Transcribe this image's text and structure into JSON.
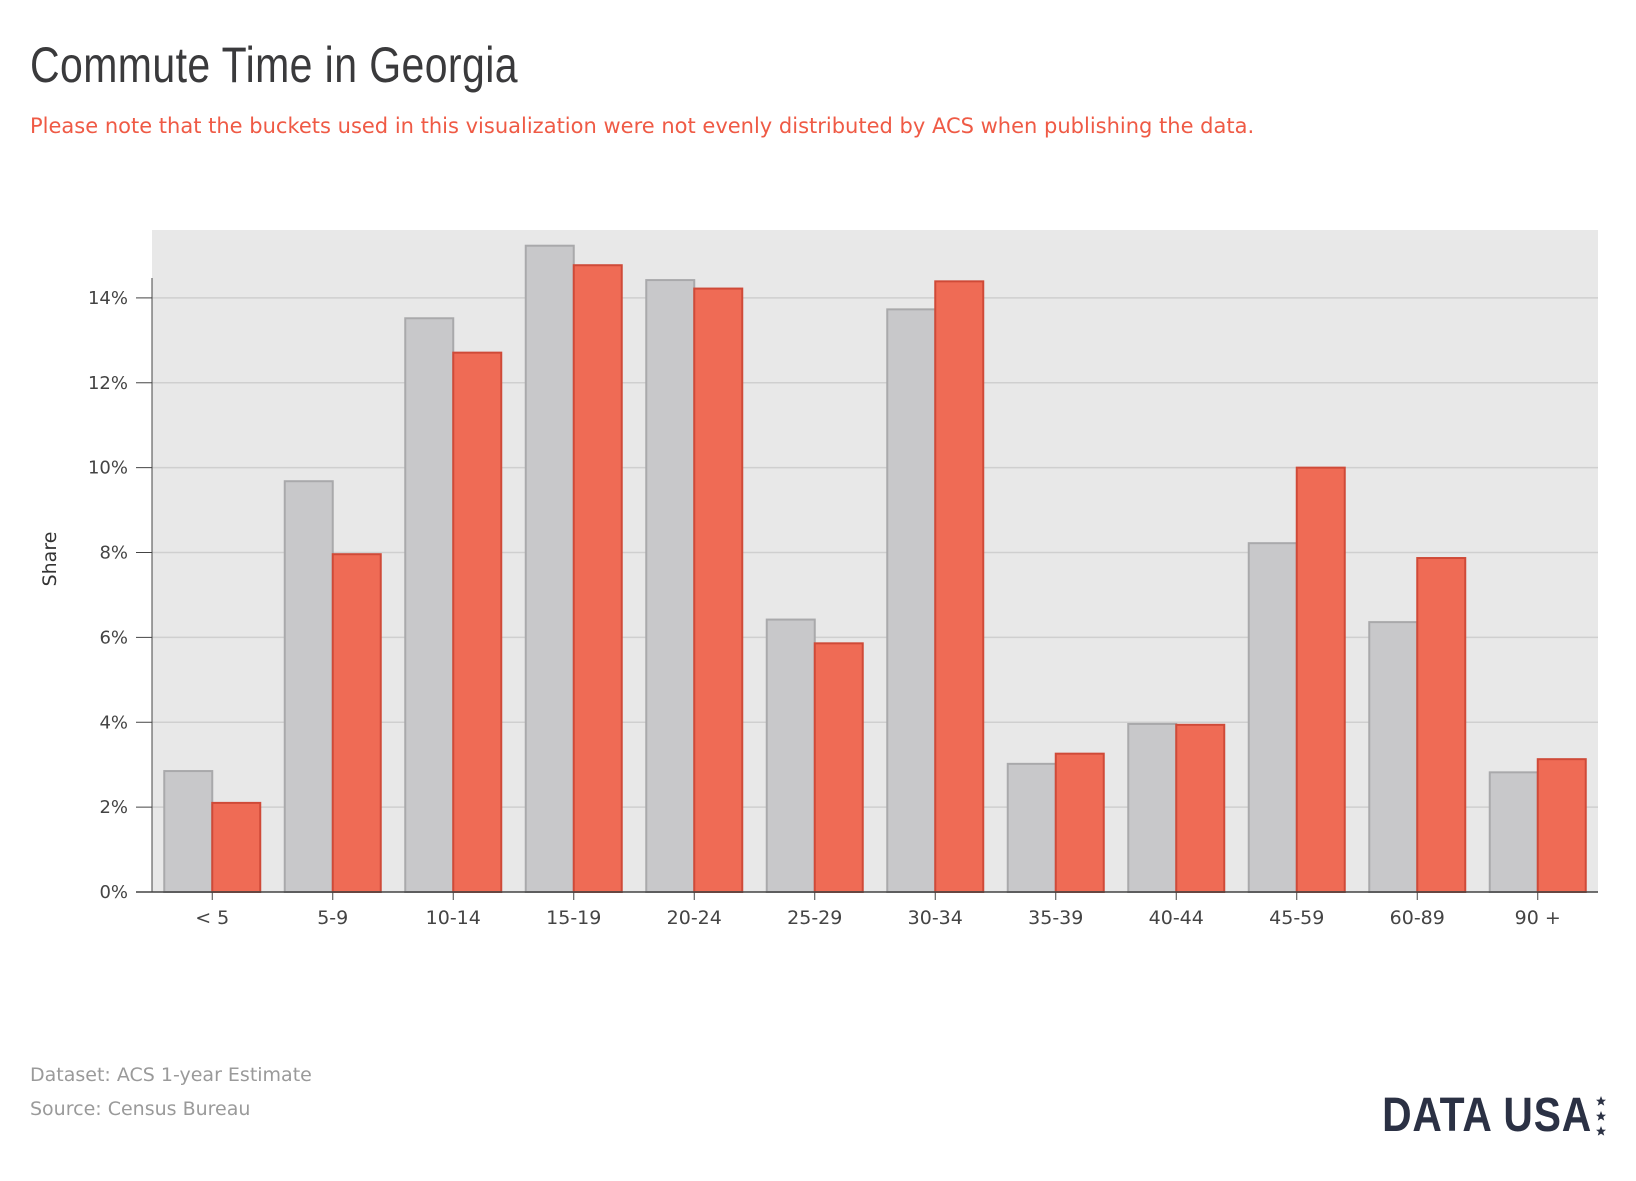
{
  "title": "Commute Time in Georgia",
  "note": "Please note that the buckets used in this visualization were not evenly distributed by ACS when publishing the data.",
  "footer": {
    "dataset": "Dataset: ACS 1-year Estimate",
    "source": "Source: Census Bureau"
  },
  "logo": {
    "text": "DATA USA",
    "icon": "stars-icon"
  },
  "colors": {
    "series_1": "#c8c8ca",
    "series_1_stroke": "#a9a9ab",
    "series_2": "#ef6b55",
    "series_2_stroke": "#cf4a38",
    "plot_background": "#e8e8e8",
    "gridline": "#cfcfcf",
    "note": "#ef5a45"
  },
  "chart_data": {
    "type": "bar",
    "ylabel": "Share",
    "xlabel": "",
    "ylim": [
      0,
      15.6
    ],
    "yticks": [
      0,
      2,
      4,
      6,
      8,
      10,
      12,
      14
    ],
    "ytick_format": "%",
    "grid": true,
    "legend": "none",
    "categories": [
      "< 5",
      "5-9",
      "10-14",
      "15-19",
      "20-24",
      "25-29",
      "30-34",
      "35-39",
      "40-44",
      "45-59",
      "60-89",
      "90 +"
    ],
    "series": [
      {
        "values": [
          2.85,
          9.68,
          13.52,
          15.23,
          14.42,
          6.42,
          13.73,
          3.02,
          3.96,
          8.22,
          6.36,
          2.82
        ]
      },
      {
        "values": [
          2.1,
          7.96,
          12.71,
          14.77,
          14.22,
          5.86,
          14.39,
          3.26,
          3.94,
          10.0,
          7.87,
          3.13
        ]
      }
    ]
  }
}
